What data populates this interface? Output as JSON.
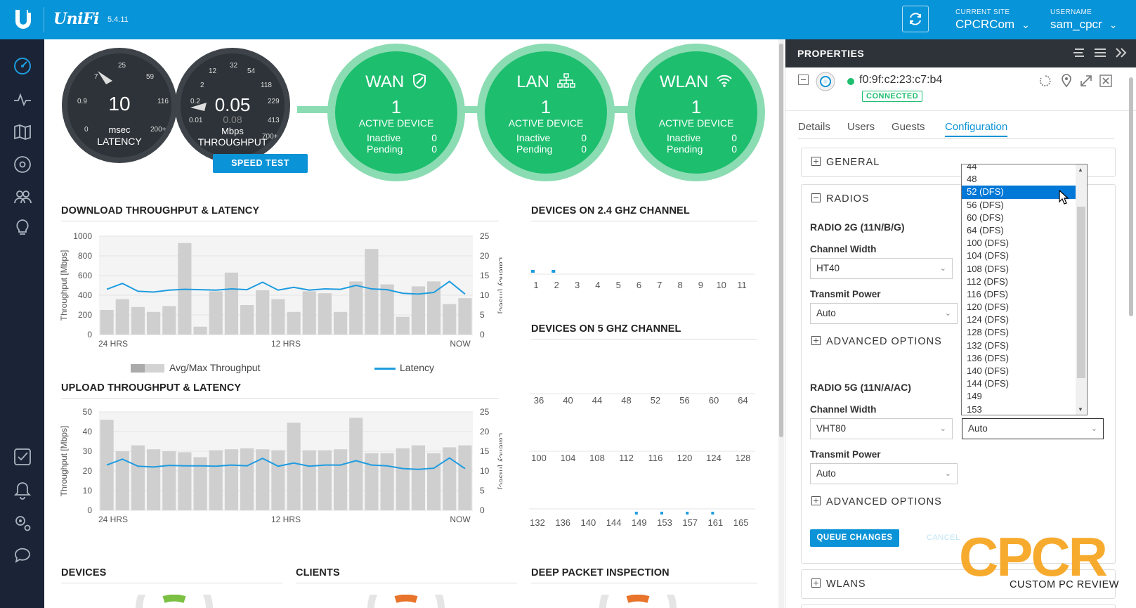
{
  "app": {
    "brand": "UniFi",
    "version": "5.4.11"
  },
  "topbar": {
    "site_label": "CURRENT SITE",
    "site_value": "CPCRCom",
    "user_label": "USERNAME",
    "user_value": "sam_cpcr"
  },
  "nav": [
    "dashboard-icon",
    "statistics-icon",
    "map-icon",
    "devices-icon",
    "clients-icon",
    "insights-icon",
    "alerts-check-icon",
    "events-bell-icon",
    "settings-icon",
    "support-chat-icon"
  ],
  "gauges": {
    "latency": {
      "value": "10",
      "unit": "msec",
      "name": "LATENCY",
      "ticks": [
        "25",
        "7",
        "59",
        "0.9",
        "116",
        "0",
        "200+"
      ]
    },
    "throughput": {
      "value": "0.05",
      "secondary": "0.08",
      "unit": "Mbps",
      "name": "THROUGHPUT",
      "ticks": [
        "32",
        "54",
        "12",
        "118",
        "2",
        "229",
        "0.2",
        "413",
        "0.01",
        "700+"
      ]
    },
    "speed_test": "SPEED TEST"
  },
  "status": [
    {
      "title": "WAN",
      "count": "1",
      "label": "ACTIVE DEVICE",
      "inactive_label": "Inactive",
      "inactive": "0",
      "pending_label": "Pending",
      "pending": "0",
      "icon": "shield-icon"
    },
    {
      "title": "LAN",
      "count": "1",
      "label": "ACTIVE DEVICE",
      "inactive_label": "Inactive",
      "inactive": "0",
      "pending_label": "Pending",
      "pending": "0",
      "icon": "network-icon"
    },
    {
      "title": "WLAN",
      "count": "1",
      "label": "ACTIVE DEVICE",
      "inactive_label": "Inactive",
      "inactive": "0",
      "pending_label": "Pending",
      "pending": "0",
      "icon": "wifi-icon"
    }
  ],
  "sections": {
    "download": "DOWNLOAD THROUGHPUT & LATENCY",
    "upload": "UPLOAD THROUGHPUT & LATENCY",
    "ch24": "DEVICES ON 2.4 GHZ CHANNEL",
    "ch5": "DEVICES ON 5 GHZ CHANNEL",
    "devices": "DEVICES",
    "clients": "CLIENTS",
    "dpi": "DEEP PACKET INSPECTION"
  },
  "legend": {
    "throughput": "Avg/Max Throughput",
    "latency": "Latency"
  },
  "chart_data": [
    {
      "type": "bar",
      "title": "DOWNLOAD THROUGHPUT & LATENCY",
      "ylabel": "Throughput [Mbps]",
      "y2label": "Latency [msec]",
      "ylim": [
        0,
        1000
      ],
      "y2lim": [
        0,
        25
      ],
      "yticks": [
        "1000",
        "800",
        "600",
        "400",
        "200",
        "0"
      ],
      "y2ticks": [
        "25",
        "20",
        "15",
        "10",
        "5",
        "0"
      ],
      "xticks": [
        "24 HRS",
        "12 HRS",
        "NOW"
      ],
      "series": [
        {
          "name": "Avg/Max Throughput",
          "values": [
            250,
            360,
            280,
            230,
            290,
            930,
            80,
            440,
            630,
            300,
            450,
            360,
            230,
            440,
            420,
            230,
            540,
            870,
            510,
            180,
            490,
            540,
            310,
            370
          ]
        },
        {
          "name": "Latency",
          "values": [
            11.5,
            13,
            11,
            10.8,
            11.3,
            11.5,
            11.4,
            11.3,
            11.6,
            11.4,
            13.3,
            11.3,
            12,
            11.3,
            11.6,
            11.5,
            12.5,
            11.6,
            11.4,
            10.5,
            10.3,
            10.7,
            13.5,
            10.3
          ]
        }
      ]
    },
    {
      "type": "bar",
      "title": "UPLOAD THROUGHPUT & LATENCY",
      "ylabel": "Throughput [Mbps]",
      "y2label": "Latency [msec]",
      "ylim": [
        0,
        50
      ],
      "y2lim": [
        0,
        25
      ],
      "yticks": [
        "50",
        "40",
        "30",
        "20",
        "10",
        "0"
      ],
      "y2ticks": [
        "25",
        "20",
        "15",
        "10",
        "5",
        "0"
      ],
      "xticks": [
        "24 HRS",
        "12 HRS",
        "NOW"
      ],
      "series": [
        {
          "name": "Avg/Max Throughput",
          "values": [
            46,
            30,
            33,
            31,
            30,
            29.5,
            27,
            30.5,
            31,
            31.5,
            31,
            30.5,
            44.5,
            30.5,
            30.5,
            31,
            47,
            29,
            29,
            31.5,
            33,
            29,
            32,
            33
          ]
        },
        {
          "name": "Latency",
          "values": [
            11.5,
            13,
            11.2,
            11,
            11.4,
            11.3,
            11.3,
            11.2,
            11.5,
            11.3,
            13.2,
            11.2,
            12,
            11.2,
            11.5,
            11.5,
            12.6,
            11.5,
            11.3,
            10.6,
            10.4,
            10.7,
            13.3,
            10.6
          ]
        }
      ]
    },
    {
      "type": "scatter",
      "title": "DEVICES ON 2.4 GHZ CHANNEL",
      "channels": [
        "1",
        "2",
        "3",
        "4",
        "5",
        "6",
        "7",
        "8",
        "9",
        "10",
        "11"
      ],
      "devices_on": [
        "1",
        "2"
      ]
    },
    {
      "type": "scatter",
      "title": "DEVICES ON 5 GHZ CHANNEL",
      "rows": [
        [
          "36",
          "40",
          "44",
          "48",
          "52",
          "56",
          "60",
          "64"
        ],
        [
          "100",
          "104",
          "108",
          "112",
          "116",
          "120",
          "124",
          "128"
        ],
        [
          "132",
          "136",
          "140",
          "144",
          "149",
          "153",
          "157",
          "161",
          "165"
        ]
      ],
      "devices_on": [
        "149",
        "153",
        "157",
        "161"
      ]
    }
  ],
  "properties": {
    "title": "PROPERTIES",
    "mac": "f0:9f:c2:23:c7:b4",
    "status": "CONNECTED",
    "status_color": "#1dbe6e",
    "tabs": [
      "Details",
      "Users",
      "Guests",
      "Configuration"
    ],
    "active_tab": "Configuration",
    "general": "GENERAL",
    "radios": "RADIOS",
    "radio2g": "RADIO 2G (11N/B/G)",
    "radio5g": "RADIO 5G (11N/A/AC)",
    "channel_width_label": "Channel Width",
    "transmit_power_label": "Transmit Power",
    "radio2g_width": "HT40",
    "radio2g_power": "Auto",
    "radio5g_width": "VHT80",
    "radio5g_power": "Auto",
    "radio5g_channel": "Auto",
    "advanced": "ADVANCED OPTIONS",
    "queue": "QUEUE CHANGES",
    "cancel": "CANCEL",
    "wlans": "WLANS"
  },
  "dropdown": {
    "options": [
      "44",
      "48",
      "52 (DFS)",
      "56 (DFS)",
      "60 (DFS)",
      "64 (DFS)",
      "100 (DFS)",
      "104 (DFS)",
      "108 (DFS)",
      "112 (DFS)",
      "116 (DFS)",
      "120 (DFS)",
      "124 (DFS)",
      "128 (DFS)",
      "132 (DFS)",
      "136 (DFS)",
      "140 (DFS)",
      "144 (DFS)",
      "149",
      "153"
    ],
    "selected": "52 (DFS)"
  },
  "watermark": {
    "big": "CPCR",
    "small": "CUSTOM PC REVIEW"
  }
}
